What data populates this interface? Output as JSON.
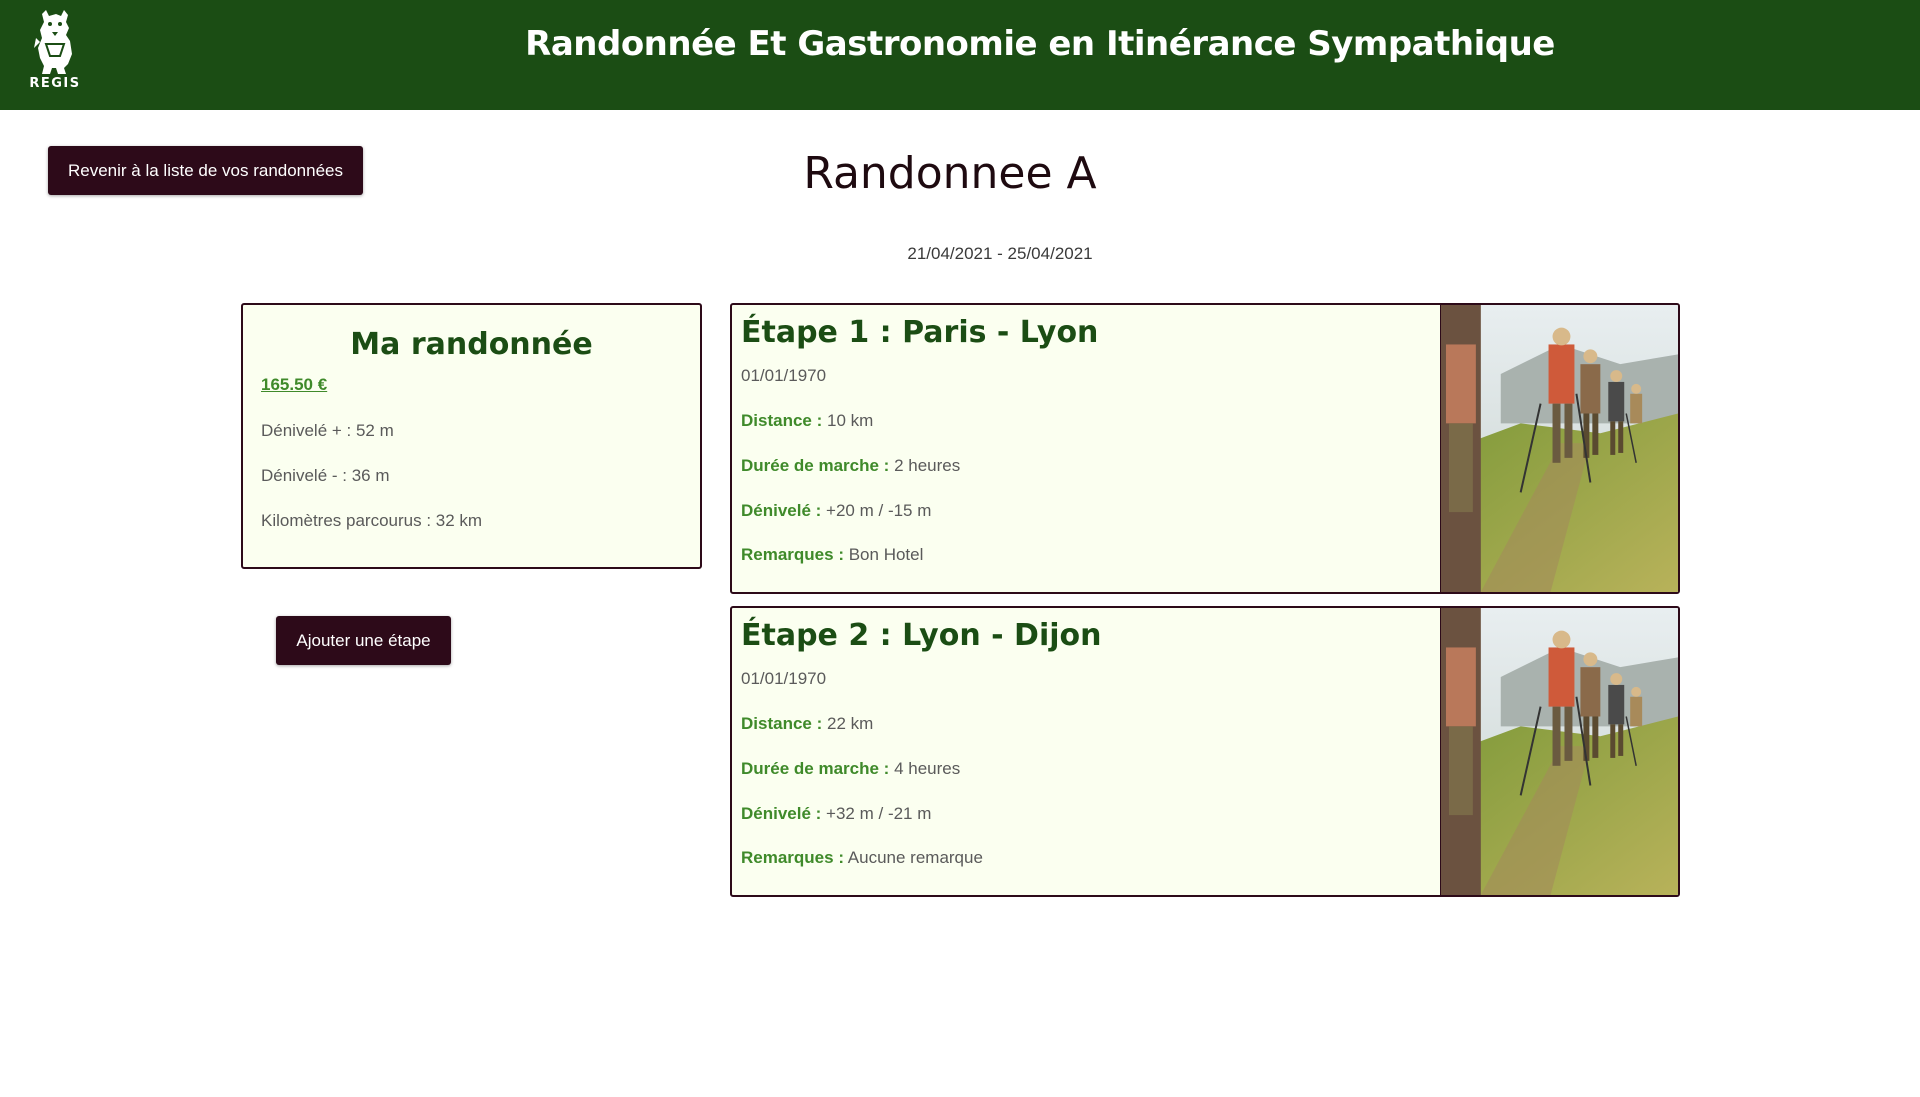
{
  "header": {
    "logo_text": "REGIS",
    "title": "Randonnée Et Gastronomie en Itinérance Sympathique"
  },
  "nav": {
    "back_label": "Revenir à la liste de vos randonnées"
  },
  "hike": {
    "title": "Randonnee A",
    "date_range": "21/04/2021 - 25/04/2021"
  },
  "summary": {
    "title": "Ma randonnée",
    "price": "165.50 €",
    "elevation_gain": "Dénivelé + : 52 m",
    "elevation_loss": "Dénivelé - : 36 m",
    "km_travelled": "Kilomètres parcourus : 32 km"
  },
  "actions": {
    "add_stage_label": "Ajouter une étape"
  },
  "labels": {
    "distance": "Distance :",
    "duration": "Durée de marche :",
    "elevation": "Dénivelé :",
    "remarks": "Remarques :"
  },
  "stages": [
    {
      "title": "Étape 1 : Paris - Lyon",
      "date": "01/01/1970",
      "distance": "10 km",
      "duration": "2 heures",
      "elevation": "+20 m / -15 m",
      "remarks": "Bon Hotel",
      "image_icon": "hikers-photo"
    },
    {
      "title": "Étape 2 : Lyon - Dijon",
      "date": "01/01/1970",
      "distance": "22 km",
      "duration": "4 heures",
      "elevation": "+32 m / -21 m",
      "remarks": "Aucune remarque",
      "image_icon": "hikers-photo"
    }
  ],
  "colors": {
    "header_bg": "#1b4d14",
    "button_bg": "#2d0a19",
    "card_bg": "#fbfff0",
    "accent_green": "#3f8a2a"
  }
}
